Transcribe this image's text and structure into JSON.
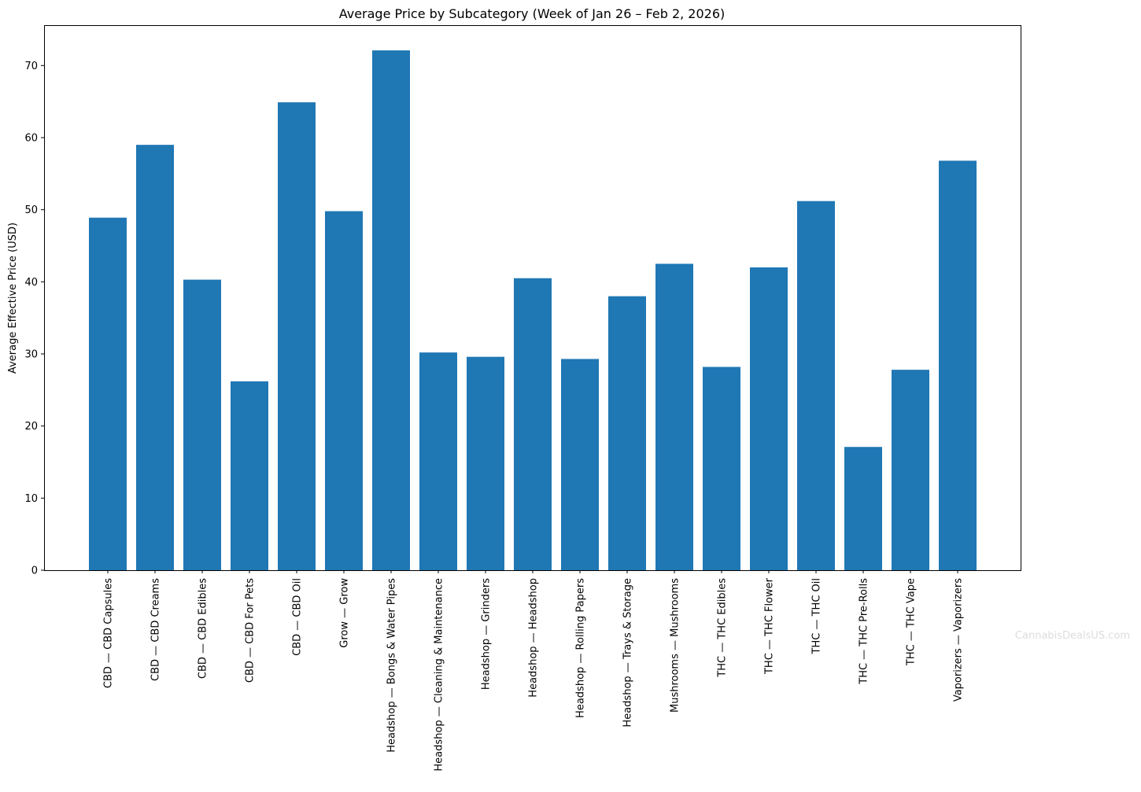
{
  "chart_data": {
    "type": "bar",
    "title": "Average Price by Subcategory (Week of Jan 26 – Feb 2, 2026)",
    "xlabel": "",
    "ylabel": "Average Effective Price (USD)",
    "ylim": [
      0,
      75.6
    ],
    "yticks": [
      0,
      10,
      20,
      30,
      40,
      50,
      60,
      70
    ],
    "grid": false,
    "legend": "none",
    "bar_color": "#1f77b4",
    "categories": [
      "CBD — CBD Capsules",
      "CBD — CBD Creams",
      "CBD — CBD Edibles",
      "CBD — CBD For Pets",
      "CBD — CBD Oil",
      "Grow — Grow",
      "Headshop — Bongs & Water Pipes",
      "Headshop — Cleaning & Maintenance",
      "Headshop — Grinders",
      "Headshop — Headshop",
      "Headshop — Rolling Papers",
      "Headshop — Trays & Storage",
      "Mushrooms — Mushrooms",
      "THC — THC Edibles",
      "THC — THC Flower",
      "THC — THC Oil",
      "THC — THC Pre-Rolls",
      "THC — THC Vape",
      "Vaporizers — Vaporizers"
    ],
    "values": [
      48.9,
      59.0,
      40.3,
      26.2,
      64.9,
      49.8,
      72.1,
      30.2,
      29.6,
      40.5,
      29.3,
      38.0,
      42.5,
      28.2,
      42.0,
      51.2,
      17.1,
      27.8,
      56.8
    ]
  },
  "watermark": {
    "text": "CannabisDealsUS.com",
    "color": "#dddddd"
  }
}
